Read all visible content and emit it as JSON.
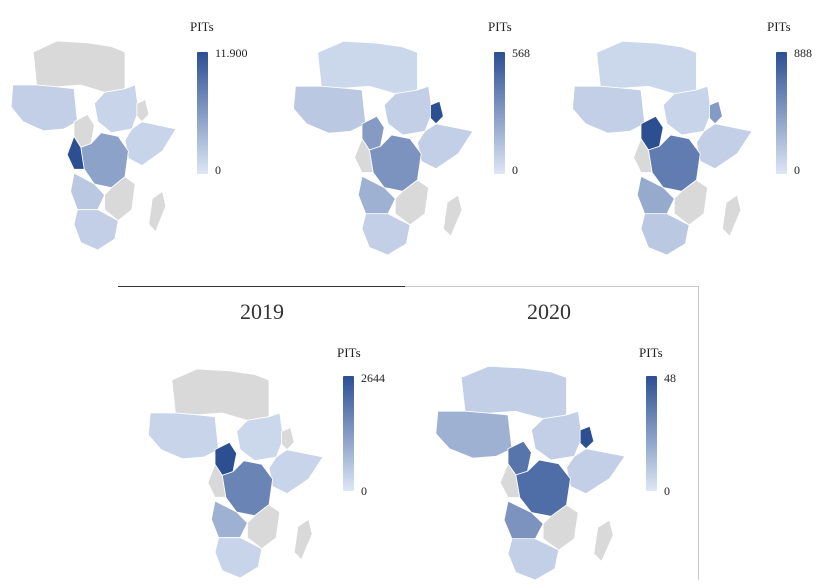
{
  "colors": {
    "background": "#ffffff",
    "no_data": "#d9d9d9",
    "scale_low": "#dde6f5",
    "scale_high": "#2c4f92",
    "border": "#ffffff"
  },
  "panels": [
    {
      "legend": {
        "title": "PITs",
        "max": "11.900",
        "min": "0"
      },
      "highlights": [
        {
          "region": "west",
          "level": 0.15
        },
        {
          "region": "nile",
          "level": 0.12
        },
        {
          "region": "horn",
          "level": 0.12
        },
        {
          "region": "central",
          "level": 0.45
        },
        {
          "region": "congo",
          "level": 1.0
        },
        {
          "region": "angola",
          "level": 0.2
        },
        {
          "region": "south",
          "level": 0.15
        }
      ]
    },
    {
      "legend": {
        "title": "PITs",
        "max": "568",
        "min": "0"
      },
      "highlights": [
        {
          "region": "west",
          "level": 0.2
        },
        {
          "region": "north",
          "level": 0.1
        },
        {
          "region": "nile",
          "level": 0.15
        },
        {
          "region": "eritrea",
          "level": 1.0
        },
        {
          "region": "horn",
          "level": 0.15
        },
        {
          "region": "cameroon",
          "level": 0.5
        },
        {
          "region": "central",
          "level": 0.55
        },
        {
          "region": "angola",
          "level": 0.35
        },
        {
          "region": "south",
          "level": 0.15
        }
      ]
    },
    {
      "legend": {
        "title": "PITs",
        "max": "888",
        "min": "0"
      },
      "highlights": [
        {
          "region": "west",
          "level": 0.15
        },
        {
          "region": "north",
          "level": 0.1
        },
        {
          "region": "nile",
          "level": 0.12
        },
        {
          "region": "eritrea",
          "level": 0.5
        },
        {
          "region": "horn",
          "level": 0.15
        },
        {
          "region": "cameroon",
          "level": 1.0
        },
        {
          "region": "central",
          "level": 0.7
        },
        {
          "region": "angola",
          "level": 0.4
        },
        {
          "region": "south",
          "level": 0.2
        }
      ]
    },
    {
      "year": "2019",
      "legend": {
        "title": "PITs",
        "max": "2644",
        "min": "0"
      },
      "highlights": [
        {
          "region": "west",
          "level": 0.12
        },
        {
          "region": "nile",
          "level": 0.1
        },
        {
          "region": "horn",
          "level": 0.12
        },
        {
          "region": "cameroon",
          "level": 1.0
        },
        {
          "region": "central",
          "level": 0.65
        },
        {
          "region": "angola",
          "level": 0.35
        },
        {
          "region": "south",
          "level": 0.12
        }
      ]
    },
    {
      "year": "2020",
      "legend": {
        "title": "PITs",
        "max": "48",
        "min": "0"
      },
      "highlights": [
        {
          "region": "west",
          "level": 0.35
        },
        {
          "region": "north",
          "level": 0.15
        },
        {
          "region": "nile",
          "level": 0.15
        },
        {
          "region": "eritrea",
          "level": 1.0
        },
        {
          "region": "horn",
          "level": 0.15
        },
        {
          "region": "cameroon",
          "level": 0.75
        },
        {
          "region": "central",
          "level": 0.8
        },
        {
          "region": "angola",
          "level": 0.55
        },
        {
          "region": "south",
          "level": 0.15
        }
      ]
    }
  ]
}
